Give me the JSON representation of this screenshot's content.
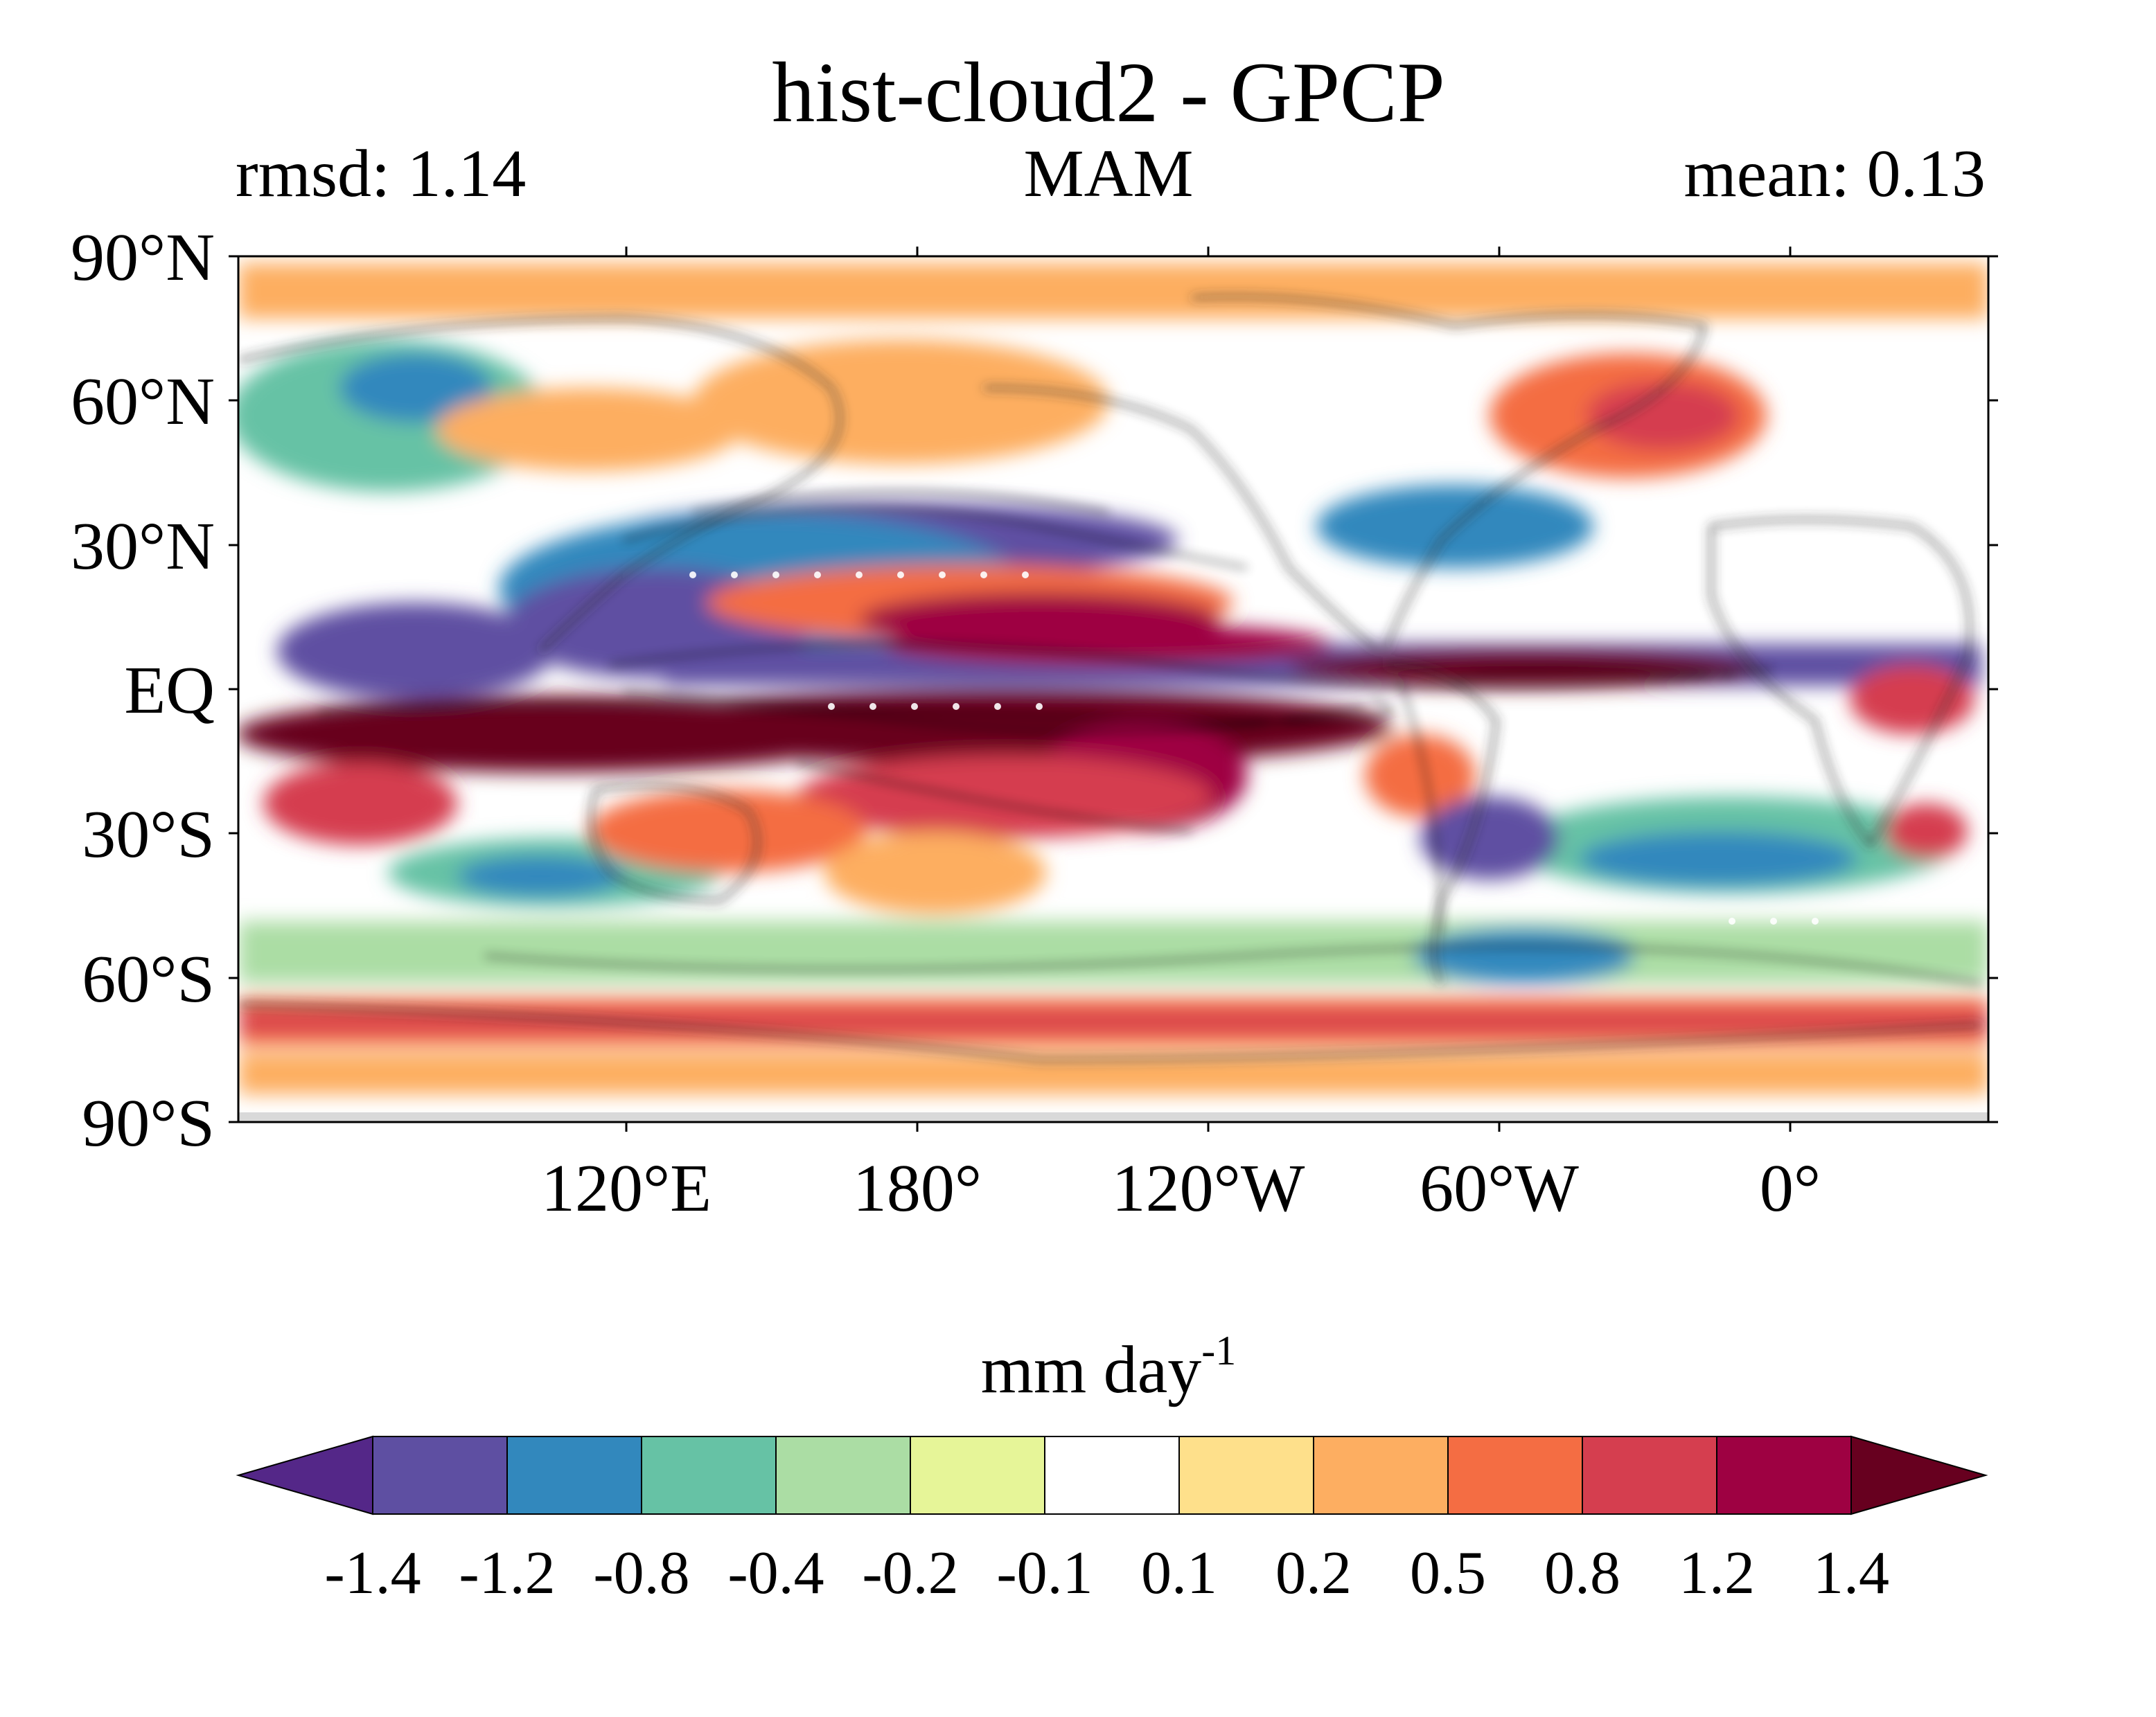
{
  "title": "hist-cloud2 - GPCP",
  "stats": {
    "left": "rmsd: 1.14",
    "center": "MAM",
    "right": "mean: 0.13"
  },
  "map": {
    "lat_labels": [
      "90°N",
      "60°N",
      "30°N",
      "EQ",
      "30°S",
      "60°S",
      "90°S"
    ],
    "lon_labels": [
      "120°E",
      "180°",
      "120°W",
      "60°W",
      "0°"
    ]
  },
  "colorbar": {
    "unit_main": "mm day",
    "unit_sup": "-1",
    "colors": [
      "#542788",
      "#5e4fa2",
      "#3288bd",
      "#66c2a5",
      "#abdda4",
      "#e6f598",
      "#ffffff",
      "#fee08b",
      "#fdae61",
      "#f46d43",
      "#d53e4f",
      "#9e0142",
      "#67001f"
    ],
    "tick_labels": [
      "-1.4",
      "-1.2",
      "-0.8",
      "-0.4",
      "-0.2",
      "-0.1",
      "0.1",
      "0.2",
      "0.5",
      "0.8",
      "1.2",
      "1.4"
    ]
  }
}
